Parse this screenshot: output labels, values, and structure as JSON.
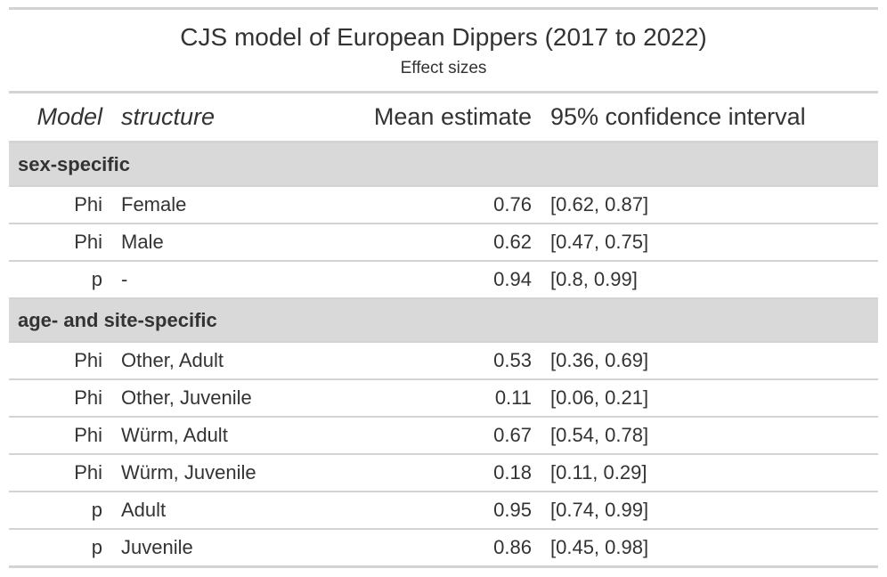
{
  "title": "CJS model of European Dippers (2017 to 2022)",
  "subtitle": "Effect sizes",
  "columns": {
    "model": "Model",
    "structure": "structure",
    "mean": "Mean estimate",
    "ci": "95% confidence interval"
  },
  "groups": [
    {
      "label": "sex-specific",
      "rows": [
        {
          "model": "Phi",
          "structure": "Female",
          "mean": "0.76",
          "ci": "[0.62, 0.87]"
        },
        {
          "model": "Phi",
          "structure": "Male",
          "mean": "0.62",
          "ci": "[0.47, 0.75]"
        },
        {
          "model": "p",
          "structure": "-",
          "mean": "0.94",
          "ci": "[0.8, 0.99]"
        }
      ]
    },
    {
      "label": "age- and site-specific",
      "rows": [
        {
          "model": "Phi",
          "structure": "Other, Adult",
          "mean": "0.53",
          "ci": "[0.36, 0.69]"
        },
        {
          "model": "Phi",
          "structure": "Other, Juvenile",
          "mean": "0.11",
          "ci": "[0.06, 0.21]"
        },
        {
          "model": "Phi",
          "structure": "Würm, Adult",
          "mean": "0.67",
          "ci": "[0.54, 0.78]"
        },
        {
          "model": "Phi",
          "structure": "Würm, Juvenile",
          "mean": "0.18",
          "ci": "[0.11, 0.29]"
        },
        {
          "model": "p",
          "structure": "Adult",
          "mean": "0.95",
          "ci": "[0.74, 0.99]"
        },
        {
          "model": "p",
          "structure": "Juvenile",
          "mean": "0.86",
          "ci": "[0.45, 0.98]"
        }
      ]
    }
  ]
}
